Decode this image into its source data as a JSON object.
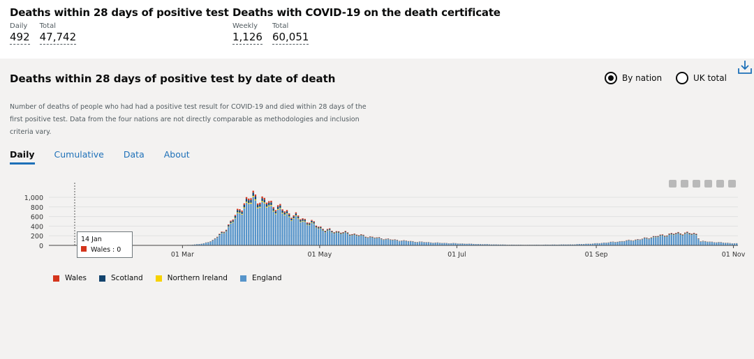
{
  "headlines": [
    {
      "title": "Deaths within 28 days of positive test",
      "metrics": [
        {
          "label": "Daily",
          "value": "492"
        },
        {
          "label": "Total",
          "value": "47,742"
        }
      ]
    },
    {
      "title": "Deaths with COVID-19 on the death certificate",
      "metrics": [
        {
          "label": "Weekly",
          "value": "1,126"
        },
        {
          "label": "Total",
          "value": "60,051"
        }
      ]
    }
  ],
  "card": {
    "title": "Deaths within 28 days of positive test by date of death",
    "radios": [
      {
        "label": "By nation",
        "checked": true
      },
      {
        "label": "UK total",
        "checked": false
      }
    ],
    "description": "Number of deaths of people who had had a positive test result for COVID-19 and died within 28 days of the first positive test. Data from the four nations are not directly comparable as methodologies and inclusion criteria vary.",
    "tabs": [
      "Daily",
      "Cumulative",
      "Data",
      "About"
    ],
    "active_tab": "Daily"
  },
  "tooltip": {
    "date": "14 Jan",
    "series": "Wales",
    "value": "Wales : 0"
  },
  "chart_data": {
    "type": "bar",
    "stacked": true,
    "title": "Deaths within 28 days of positive test by date of death",
    "x_ticks": [
      "01 Mar",
      "01 May",
      "01 Jul",
      "01 Sep",
      "01 Nov"
    ],
    "y_ticks": [
      "0",
      "200",
      "400",
      "600",
      "800",
      "1,000"
    ],
    "ylim": [
      0,
      1100
    ],
    "x_start": "2020-01-14",
    "x_end": "2020-11-02",
    "series": [
      {
        "name": "Wales",
        "color": "#d4351c"
      },
      {
        "name": "Scotland",
        "color": "#12436d"
      },
      {
        "name": "Northern Ireland",
        "color": "#f7d200"
      },
      {
        "name": "England",
        "color": "#5694ca"
      }
    ],
    "total_keypoints": [
      {
        "day": 0,
        "value": 0
      },
      {
        "day": 40,
        "value": 0
      },
      {
        "day": 50,
        "value": 10
      },
      {
        "day": 56,
        "value": 40
      },
      {
        "day": 60,
        "value": 110
      },
      {
        "day": 65,
        "value": 300
      },
      {
        "day": 70,
        "value": 620
      },
      {
        "day": 74,
        "value": 900
      },
      {
        "day": 77,
        "value": 1000
      },
      {
        "day": 78,
        "value": 1060
      },
      {
        "day": 80,
        "value": 980
      },
      {
        "day": 85,
        "value": 900
      },
      {
        "day": 90,
        "value": 780
      },
      {
        "day": 95,
        "value": 650
      },
      {
        "day": 100,
        "value": 560
      },
      {
        "day": 105,
        "value": 460
      },
      {
        "day": 110,
        "value": 330
      },
      {
        "day": 120,
        "value": 260
      },
      {
        "day": 130,
        "value": 180
      },
      {
        "day": 140,
        "value": 120
      },
      {
        "day": 150,
        "value": 80
      },
      {
        "day": 160,
        "value": 55
      },
      {
        "day": 170,
        "value": 40
      },
      {
        "day": 180,
        "value": 25
      },
      {
        "day": 190,
        "value": 15
      },
      {
        "day": 200,
        "value": 12
      },
      {
        "day": 210,
        "value": 15
      },
      {
        "day": 220,
        "value": 20
      },
      {
        "day": 230,
        "value": 40
      },
      {
        "day": 240,
        "value": 80
      },
      {
        "day": 250,
        "value": 130
      },
      {
        "day": 258,
        "value": 200
      },
      {
        "day": 265,
        "value": 250
      },
      {
        "day": 270,
        "value": 265
      },
      {
        "day": 275,
        "value": 240
      },
      {
        "day": 277,
        "value": 90
      },
      {
        "day": 293,
        "value": 40
      }
    ],
    "shares": {
      "Wales": 0.035,
      "Scotland": 0.06,
      "Northern Ireland": 0.02,
      "England": 0.885
    }
  },
  "legend": [
    {
      "name": "Wales",
      "color": "#d4351c"
    },
    {
      "name": "Scotland",
      "color": "#12436d"
    },
    {
      "name": "Northern Ireland",
      "color": "#f7d200"
    },
    {
      "name": "England",
      "color": "#5694ca"
    }
  ]
}
